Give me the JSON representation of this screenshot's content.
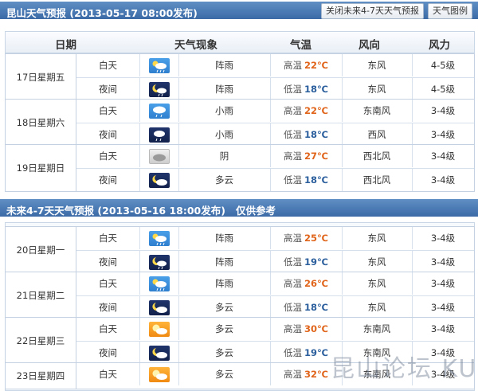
{
  "top_bar": {
    "title": "昆山天气预报 (2013-05-17  08:00发布)",
    "close_btn": "关闭未来4-7天天气预报",
    "legend_btn": "天气图例"
  },
  "columns": [
    "日期",
    "天气现象",
    "气温",
    "风向",
    "风力"
  ],
  "labels": {
    "day": "白天",
    "night": "夜间",
    "high": "高温",
    "low": "低温"
  },
  "section2": {
    "title": "未来4-7天天气预报 (2013-05-16 18:00发布)",
    "note": "仅供参考"
  },
  "days": [
    {
      "date": "17日星期五",
      "day": {
        "icon": "shower-day-icon",
        "desc": "阵雨",
        "temp": "22℃",
        "wd": "东风",
        "wp": "4-5级"
      },
      "night": {
        "icon": "shower-night-icon",
        "desc": "阵雨",
        "temp": "18℃",
        "wd": "东风",
        "wp": "4-5级"
      }
    },
    {
      "date": "18日星期六",
      "day": {
        "icon": "light-rain-day-icon",
        "desc": "小雨",
        "temp": "22℃",
        "wd": "东南风",
        "wp": "3-4级"
      },
      "night": {
        "icon": "light-rain-night-icon",
        "desc": "小雨",
        "temp": "18℃",
        "wd": "西风",
        "wp": "3-4级"
      }
    },
    {
      "date": "19日星期日",
      "day": {
        "icon": "overcast-icon",
        "desc": "阴",
        "temp": "27℃",
        "wd": "西北风",
        "wp": "3-4级"
      },
      "night": {
        "icon": "cloudy-night-icon",
        "desc": "多云",
        "temp": "18℃",
        "wd": "西北风",
        "wp": "3-4级"
      }
    },
    {
      "date": "20日星期一",
      "day": {
        "icon": "shower-day-icon",
        "desc": "阵雨",
        "temp": "25℃",
        "wd": "东风",
        "wp": "3-4级"
      },
      "night": {
        "icon": "shower-night-icon",
        "desc": "阵雨",
        "temp": "19℃",
        "wd": "东风",
        "wp": "3-4级"
      }
    },
    {
      "date": "21日星期二",
      "day": {
        "icon": "shower-day-icon",
        "desc": "阵雨",
        "temp": "26℃",
        "wd": "东风",
        "wp": "3-4级"
      },
      "night": {
        "icon": "cloudy-night-icon",
        "desc": "多云",
        "temp": "18℃",
        "wd": "东风",
        "wp": "3-4级"
      }
    },
    {
      "date": "22日星期三",
      "day": {
        "icon": "cloudy-day-icon",
        "desc": "多云",
        "temp": "30℃",
        "wd": "东南风",
        "wp": "3-4级"
      },
      "night": {
        "icon": "cloudy-night-icon",
        "desc": "多云",
        "temp": "19℃",
        "wd": "东南风",
        "wp": "3-4级"
      }
    },
    {
      "date": "23日星期四",
      "day": {
        "icon": "cloudy-day-icon",
        "desc": "多云",
        "temp": "32℃",
        "wd": "东南风",
        "wp": "3-4级"
      }
    }
  ],
  "watermark": "昆山论坛 KUNSHAN BBS"
}
